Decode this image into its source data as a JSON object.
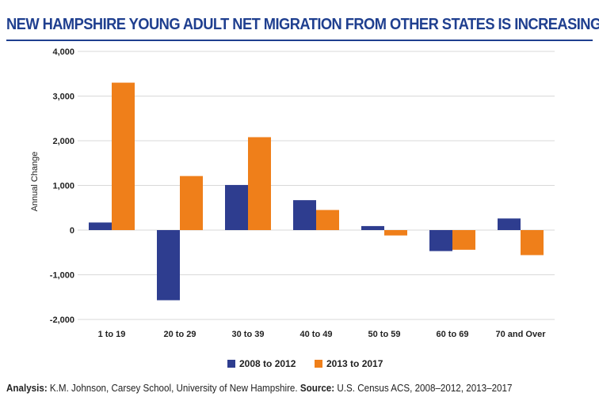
{
  "title": "NEW HAMPSHIRE YOUNG ADULT NET MIGRATION FROM OTHER STATES IS INCREASING",
  "footer": {
    "analysis_label": "Analysis:",
    "analysis_text": " K.M. Johnson, Carsey School, University of New Hampshire. ",
    "source_label": "Source:",
    "source_text": " U.S. Census ACS, 2008–2012, 2013–2017"
  },
  "chart_data": {
    "type": "bar",
    "ylabel": "Annual Change",
    "ylim": [
      -2000,
      4000
    ],
    "yticks": [
      -2000,
      -1000,
      0,
      1000,
      2000,
      3000,
      4000
    ],
    "ytick_labels": [
      "-2,000",
      "-1,000",
      "0",
      "1,000",
      "2,000",
      "3,000",
      "4,000"
    ],
    "grid": true,
    "legend_position": "bottom-center",
    "categories": [
      "1 to 19",
      "20 to 29",
      "30 to 39",
      "40 to 49",
      "50 to 59",
      "60 to 69",
      "70 and Over"
    ],
    "series": [
      {
        "name": "2008 to 2012",
        "color": "#2e3d8f",
        "values": [
          170,
          -1570,
          1010,
          670,
          90,
          -470,
          260
        ]
      },
      {
        "name": "2013 to 2017",
        "color": "#ef7f1a",
        "values": [
          3300,
          1210,
          2080,
          450,
          -120,
          -440,
          -560
        ]
      }
    ]
  }
}
